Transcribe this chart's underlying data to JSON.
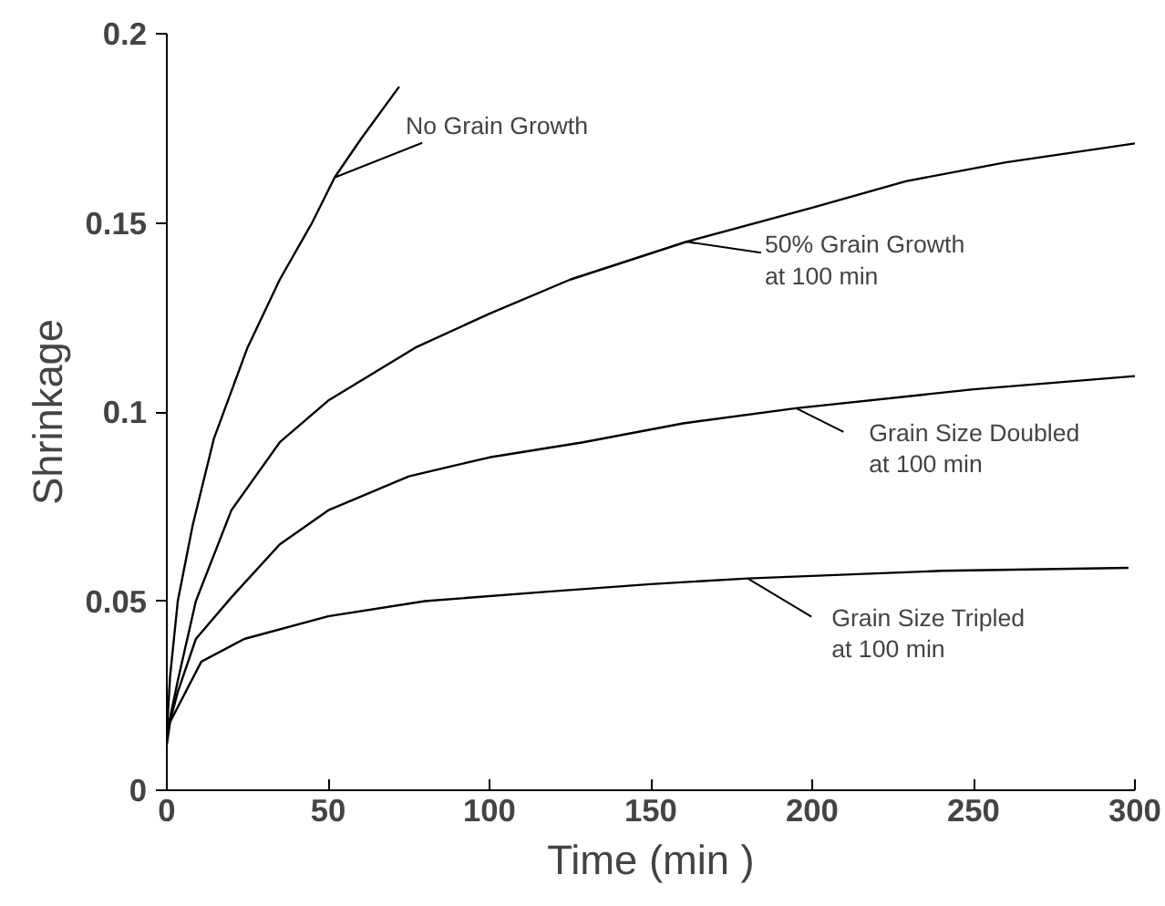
{
  "chart_data": {
    "type": "line",
    "xlabel": "Time (min )",
    "ylabel": "Shrinkage",
    "xlim": [
      0,
      300
    ],
    "ylim": [
      0,
      0.2
    ],
    "xticks": [
      0,
      50,
      100,
      150,
      200,
      250,
      300
    ],
    "yticks": [
      0,
      0.05,
      0.1,
      0.15,
      0.2
    ],
    "grid": false,
    "marker": "none",
    "line_style": "solid",
    "series": [
      {
        "color": "#000000",
        "x": [
          0,
          1,
          3.4,
          8,
          14.6,
          25,
          35,
          45,
          52,
          60,
          72
        ],
        "values": [
          0.015,
          0.03,
          0.05,
          0.07,
          0.093,
          0.117,
          0.135,
          0.15,
          0.162,
          0.172,
          0.186
        ]
      },
      {
        "color": "#000000",
        "x": [
          0,
          3.4,
          9,
          20,
          35,
          50,
          77,
          100,
          125,
          161,
          200,
          229,
          260,
          300
        ],
        "values": [
          0.015,
          0.029,
          0.05,
          0.074,
          0.092,
          0.103,
          0.117,
          0.126,
          0.135,
          0.145,
          0.154,
          0.161,
          0.166,
          0.171
        ]
      },
      {
        "color": "#000000",
        "x": [
          0,
          3.4,
          9,
          20,
          35,
          50,
          75,
          100,
          129,
          160,
          195,
          250,
          300
        ],
        "values": [
          0.015,
          0.026,
          0.04,
          0.051,
          0.065,
          0.074,
          0.083,
          0.088,
          0.092,
          0.097,
          0.101,
          0.106,
          0.1095
        ]
      },
      {
        "color": "#000000",
        "x": [
          0,
          1,
          3.4,
          10.7,
          24,
          50,
          80,
          118,
          150,
          180,
          240,
          298
        ],
        "values": [
          0.012,
          0.018,
          0.022,
          0.034,
          0.04,
          0.046,
          0.05,
          0.0525,
          0.0545,
          0.056,
          0.058,
          0.0588
        ]
      }
    ],
    "annotations": [
      {
        "text": "No Grain Growth",
        "x": 52,
        "y": 0.162
      },
      {
        "text": "50% Grain Growth\nat 100 min",
        "x": 161,
        "y": 0.145
      },
      {
        "text": "Grain Size Doubled\nat 100 min",
        "x": 195,
        "y": 0.101
      },
      {
        "text": "Grain Size Tripled\nat 100 min",
        "x": 180,
        "y": 0.056
      }
    ]
  }
}
